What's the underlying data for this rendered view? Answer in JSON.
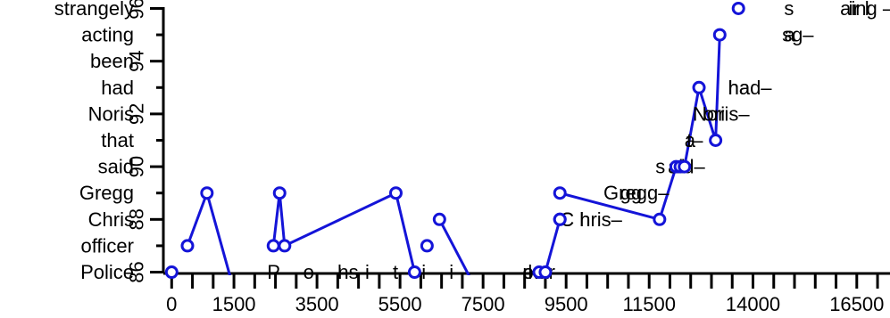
{
  "chart_data": {
    "type": "line",
    "title": "",
    "xlabel": "",
    "ylabel": "",
    "xlim": [
      -200,
      17300
    ],
    "ylim": [
      85.95,
      96.05
    ],
    "x_ticks": [
      0,
      1500,
      3500,
      5500,
      7500,
      9500,
      11500,
      14000,
      16500
    ],
    "x_minor_ticks": [
      500,
      1000,
      2000,
      2500,
      3000,
      4000,
      4500,
      5000,
      6000,
      6500,
      7000,
      8000,
      8500,
      9000,
      10000,
      10500,
      11000,
      12000,
      12500,
      13000,
      13500,
      14500,
      15000,
      15500,
      16000,
      17000
    ],
    "y_ticks": [
      86,
      88,
      90,
      92,
      94,
      96
    ],
    "y_minor_ticks": [
      87,
      89,
      91,
      93,
      95
    ],
    "y_category_labels": [
      {
        "y": 86,
        "label": "Police"
      },
      {
        "y": 87,
        "label": "officer"
      },
      {
        "y": 88,
        "label": "Chris"
      },
      {
        "y": 89,
        "label": "Gregg"
      },
      {
        "y": 90,
        "label": "said"
      },
      {
        "y": 91,
        "label": "that"
      },
      {
        "y": 92,
        "label": "Noris"
      },
      {
        "y": 93,
        "label": "had"
      },
      {
        "y": 94,
        "label": "been"
      },
      {
        "y": 95,
        "label": "acting"
      },
      {
        "y": 96,
        "label": "strangely"
      }
    ],
    "series_color": "#1414d8",
    "points": [
      {
        "x": 0,
        "y": 86
      },
      {
        "x": 380,
        "y": 87
      },
      {
        "x": 850,
        "y": 89
      },
      {
        "x": 2450,
        "y": 87
      },
      {
        "x": 2600,
        "y": 89
      },
      {
        "x": 2720,
        "y": 87
      },
      {
        "x": 5400,
        "y": 89
      },
      {
        "x": 5850,
        "y": 86
      },
      {
        "x": 6150,
        "y": 87
      },
      {
        "x": 6450,
        "y": 88
      },
      {
        "x": 8850,
        "y": 86
      },
      {
        "x": 9000,
        "y": 86
      },
      {
        "x": 9350,
        "y": 88
      },
      {
        "x": 9350,
        "y": 88
      },
      {
        "x": 9350,
        "y": 89
      },
      {
        "x": 11750,
        "y": 88
      },
      {
        "x": 12150,
        "y": 90
      },
      {
        "x": 12250,
        "y": 90
      },
      {
        "x": 12350,
        "y": 90
      },
      {
        "x": 12700,
        "y": 93
      },
      {
        "x": 13100,
        "y": 91
      },
      {
        "x": 13200,
        "y": 95
      },
      {
        "x": 13650,
        "y": 96
      }
    ],
    "segments": [
      [
        {
          "x": 380,
          "y": 87
        },
        {
          "x": 850,
          "y": 89
        }
      ],
      [
        {
          "x": 850,
          "y": 89
        },
        {
          "x": 1450,
          "y": 85.6
        }
      ],
      [
        {
          "x": 2450,
          "y": 87
        },
        {
          "x": 2600,
          "y": 89
        }
      ],
      [
        {
          "x": 2600,
          "y": 89
        },
        {
          "x": 2720,
          "y": 87
        }
      ],
      [
        {
          "x": 2720,
          "y": 87
        },
        {
          "x": 5400,
          "y": 89
        }
      ],
      [
        {
          "x": 5400,
          "y": 89
        },
        {
          "x": 5850,
          "y": 86
        }
      ],
      [
        {
          "x": 6450,
          "y": 88
        },
        {
          "x": 7250,
          "y": 85.6
        }
      ],
      [
        {
          "x": 9000,
          "y": 86
        },
        {
          "x": 9350,
          "y": 88
        }
      ],
      [
        {
          "x": 9350,
          "y": 89
        },
        {
          "x": 11750,
          "y": 88
        }
      ],
      [
        {
          "x": 11750,
          "y": 88
        },
        {
          "x": 12150,
          "y": 90
        }
      ],
      [
        {
          "x": 12350,
          "y": 90
        },
        {
          "x": 12700,
          "y": 93
        }
      ],
      [
        {
          "x": 12700,
          "y": 93
        },
        {
          "x": 13100,
          "y": 91
        }
      ],
      [
        {
          "x": 13100,
          "y": 91
        },
        {
          "x": 13200,
          "y": 95
        }
      ]
    ],
    "annotations": [
      {
        "x": 2300,
        "y": 86,
        "text": "P o l i t i i",
        "anchor": "start",
        "spacing": 10
      },
      {
        "x": 4000,
        "y": 86,
        "text": "ns",
        "anchor": "start"
      },
      {
        "x": 8450,
        "y": 86,
        "text": "p",
        "anchor": "start"
      },
      {
        "x": 8580,
        "y": 86,
        "text": "kar–",
        "anchor": "start"
      },
      {
        "x": 8450,
        "y": 86,
        "text": "o",
        "anchor": "start"
      },
      {
        "x": 8800,
        "y": 86,
        "text": "–",
        "anchor": "start"
      },
      {
        "x": 9350,
        "y": 88,
        "text": "C hris–",
        "anchor": "start"
      },
      {
        "x": 9350,
        "y": 88,
        "text": "C h",
        "anchor": "start"
      },
      {
        "x": 10400,
        "y": 89,
        "text": "Gregg–",
        "anchor": "start"
      },
      {
        "x": 10800,
        "y": 89,
        "text": "gg",
        "anchor": "start"
      },
      {
        "x": 11650,
        "y": 90,
        "text": "s",
        "anchor": "start"
      },
      {
        "x": 11950,
        "y": 90,
        "text": "aid–",
        "anchor": "start"
      },
      {
        "x": 12000,
        "y": 90,
        "text": "ai",
        "anchor": "start"
      },
      {
        "x": 12350,
        "y": 91,
        "text": "a",
        "anchor": "start"
      },
      {
        "x": 12400,
        "y": 91,
        "text": "t–",
        "anchor": "start"
      },
      {
        "x": 12550,
        "y": 92,
        "text": "Noris–",
        "anchor": "start"
      },
      {
        "x": 12800,
        "y": 92,
        "text": "ori",
        "anchor": "start"
      },
      {
        "x": 13400,
        "y": 93,
        "text": "had–",
        "anchor": "start"
      },
      {
        "x": 13400,
        "y": 93,
        "text": "ha",
        "anchor": "start"
      },
      {
        "x": 14700,
        "y": 95,
        "text": "sg–",
        "anchor": "start"
      },
      {
        "x": 14750,
        "y": 95,
        "text": "a",
        "anchor": "start"
      },
      {
        "x": 14750,
        "y": 96,
        "text": "s",
        "anchor": "start"
      },
      {
        "x": 16100,
        "y": 96,
        "text": "aing –",
        "anchor": "start"
      },
      {
        "x": 16300,
        "y": 96,
        "text": "ir l",
        "anchor": "start"
      }
    ]
  }
}
